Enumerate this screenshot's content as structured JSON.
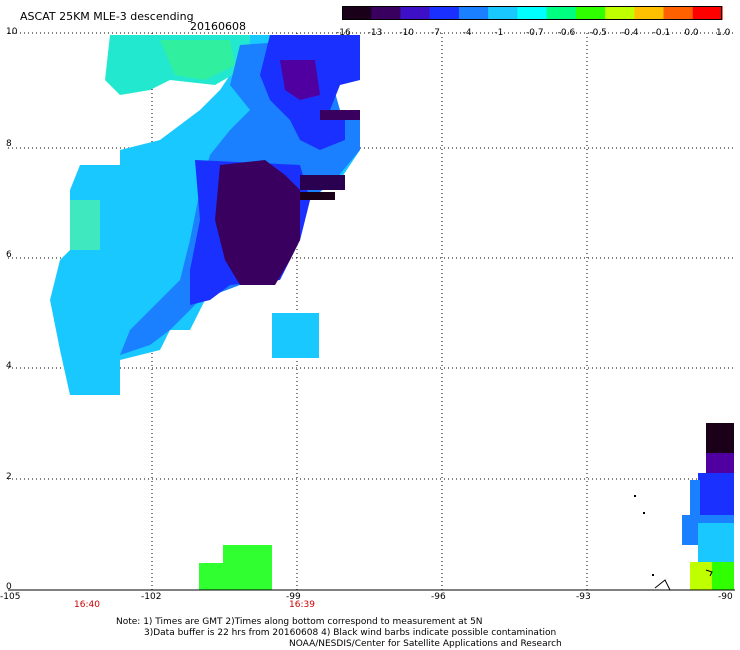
{
  "header": {
    "title": "ASCAT 25KM MLE-3 descending",
    "date": "20160608"
  },
  "colorbar": {
    "labels": [
      "-16",
      "-13",
      "-10",
      "-7",
      "-4",
      "-1",
      "-0.7",
      "-0.6",
      "-0.5",
      "-0.4",
      "-0.1",
      "0.0",
      "1.0"
    ],
    "colors": [
      "#1a0018",
      "#3a0060",
      "#3d10c8",
      "#1a30ff",
      "#1a80ff",
      "#18c8ff",
      "#00ffff",
      "#00ff80",
      "#30ff00",
      "#c0ff00",
      "#ffc000",
      "#ff6000",
      "#ff0000"
    ]
  },
  "axes": {
    "y_ticks": [
      "10",
      "8",
      "6",
      "4",
      "2",
      "0"
    ],
    "x_ticks": [
      "-105",
      "-102",
      "-99",
      "-96",
      "-93",
      "-90"
    ]
  },
  "times": [
    "16:40",
    "16:39"
  ],
  "notes": {
    "line1": "Note: 1) Times are GMT 2)Times along bottom correspond to measurement at 5N",
    "line2": "3)Data buffer is 22 hrs from 20160608 4) Black wind barbs indicate possible contamination",
    "line3": "NOAA/NESDIS/Center for Satellite Applications and Research"
  }
}
